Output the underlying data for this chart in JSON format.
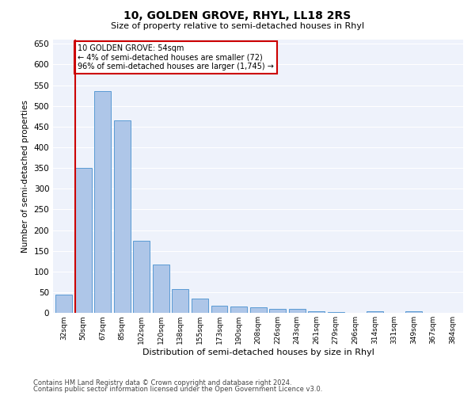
{
  "title": "10, GOLDEN GROVE, RHYL, LL18 2RS",
  "subtitle": "Size of property relative to semi-detached houses in Rhyl",
  "xlabel": "Distribution of semi-detached houses by size in Rhyl",
  "ylabel": "Number of semi-detached properties",
  "categories": [
    "32sqm",
    "50sqm",
    "67sqm",
    "85sqm",
    "102sqm",
    "120sqm",
    "138sqm",
    "155sqm",
    "173sqm",
    "190sqm",
    "208sqm",
    "226sqm",
    "243sqm",
    "261sqm",
    "279sqm",
    "296sqm",
    "314sqm",
    "331sqm",
    "349sqm",
    "367sqm",
    "384sqm"
  ],
  "values": [
    45,
    350,
    535,
    465,
    175,
    117,
    57,
    35,
    17,
    15,
    13,
    10,
    10,
    5,
    2,
    0,
    5,
    0,
    5,
    0,
    0
  ],
  "bar_color": "#aec6e8",
  "bar_edge_color": "#5a9bd4",
  "annotation_text": "10 GOLDEN GROVE: 54sqm\n← 4% of semi-detached houses are smaller (72)\n96% of semi-detached houses are larger (1,745) →",
  "annotation_box_color": "#ffffff",
  "annotation_box_edge": "#cc0000",
  "red_line_color": "#cc0000",
  "ylim": [
    0,
    660
  ],
  "yticks": [
    0,
    50,
    100,
    150,
    200,
    250,
    300,
    350,
    400,
    450,
    500,
    550,
    600,
    650
  ],
  "bg_color": "#eef2fb",
  "grid_color": "#ffffff",
  "footer_line1": "Contains HM Land Registry data © Crown copyright and database right 2024.",
  "footer_line2": "Contains public sector information licensed under the Open Government Licence v3.0."
}
